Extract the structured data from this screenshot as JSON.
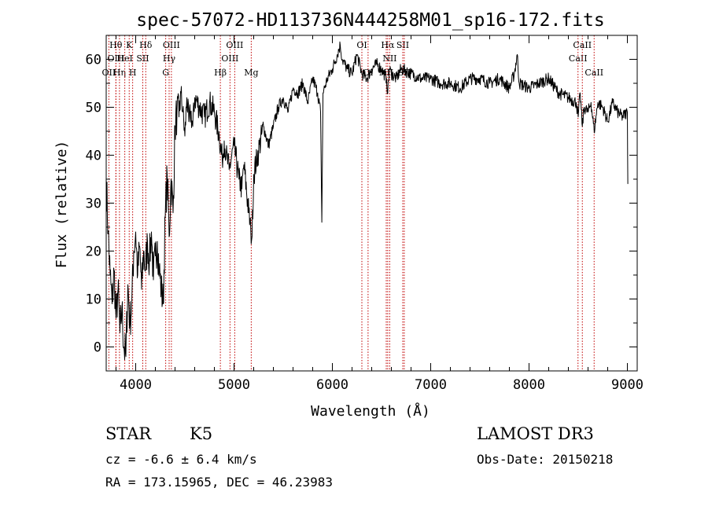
{
  "chart_data": {
    "type": "line",
    "title": "spec-57072-HD113736N444258M01_sp16-172.fits",
    "xlabel": "Wavelength (Å)",
    "ylabel": "Flux (relative)",
    "xlim": [
      3700,
      9100
    ],
    "ylim": [
      -5,
      65
    ],
    "xticks": [
      4000,
      5000,
      6000,
      7000,
      8000,
      9000
    ],
    "yticks": [
      0,
      10,
      20,
      30,
      40,
      50,
      60
    ],
    "series": [
      {
        "name": "flux",
        "x": [
          3700,
          3720,
          3740,
          3760,
          3780,
          3800,
          3820,
          3840,
          3860,
          3880,
          3900,
          3920,
          3940,
          3960,
          3980,
          4000,
          4020,
          4040,
          4060,
          4080,
          4100,
          4120,
          4140,
          4160,
          4180,
          4200,
          4220,
          4240,
          4260,
          4280,
          4300,
          4320,
          4340,
          4360,
          4380,
          4400,
          4420,
          4440,
          4460,
          4480,
          4500,
          4520,
          4540,
          4560,
          4580,
          4600,
          4650,
          4700,
          4750,
          4800,
          4850,
          4880,
          4900,
          4920,
          4950,
          5000,
          5050,
          5080,
          5100,
          5150,
          5170,
          5183,
          5200,
          5250,
          5300,
          5350,
          5400,
          5450,
          5500,
          5550,
          5600,
          5650,
          5700,
          5750,
          5800,
          5850,
          5880,
          5893,
          5905,
          5950,
          6000,
          6050,
          6080,
          6100,
          6150,
          6200,
          6250,
          6300,
          6350,
          6400,
          6450,
          6500,
          6550,
          6563,
          6580,
          6600,
          6650,
          6700,
          6800,
          6900,
          7000,
          7100,
          7200,
          7300,
          7400,
          7500,
          7600,
          7700,
          7800,
          7850,
          7880,
          7900,
          8000,
          8100,
          8200,
          8300,
          8400,
          8480,
          8500,
          8520,
          8542,
          8560,
          8600,
          8630,
          8662,
          8700,
          8750,
          8800,
          8850,
          8900,
          8950,
          9000,
          9005
        ],
        "values": [
          35,
          24,
          15,
          9,
          16,
          6,
          12,
          3,
          8,
          0,
          -2,
          13,
          5,
          9,
          20,
          24,
          15,
          21,
          12,
          20,
          16,
          22,
          18,
          24,
          14,
          19,
          22,
          16,
          12,
          9,
          27,
          36,
          23,
          35,
          28,
          46,
          49,
          48,
          53,
          49,
          44,
          52,
          47,
          49,
          46,
          52,
          50,
          48,
          51,
          49,
          44,
          39,
          43,
          40,
          37,
          42,
          35,
          33,
          38,
          28,
          24,
          23,
          36,
          41,
          46,
          42,
          46,
          50,
          52,
          49,
          54,
          53,
          55,
          51,
          56,
          53,
          49,
          26,
          53,
          56,
          58,
          61,
          63,
          60,
          58,
          57,
          61,
          57,
          56,
          58,
          59,
          58,
          56,
          53,
          58,
          57,
          56,
          58,
          57,
          56,
          56,
          55,
          55,
          54,
          56,
          56,
          55,
          56,
          54,
          57,
          61,
          55,
          54,
          55,
          56,
          53,
          52,
          51,
          48,
          53,
          46,
          50,
          49,
          51,
          45,
          51,
          50,
          47,
          51,
          49,
          48,
          49,
          34
        ]
      }
    ],
    "line_markers": [
      {
        "label": "OII",
        "wavelength": 3727,
        "row": 3
      },
      {
        "label": "Hθ",
        "wavelength": 3798,
        "row": 1
      },
      {
        "label": "OIII",
        "wavelength": 3800,
        "row": 2
      },
      {
        "label": "Hη",
        "wavelength": 3835,
        "row": 3
      },
      {
        "label": "HeI",
        "wavelength": 3889,
        "row": 2
      },
      {
        "label": "K",
        "wavelength": 3934,
        "row": 1
      },
      {
        "label": "H",
        "wavelength": 3969,
        "row": 3
      },
      {
        "label": "SII",
        "wavelength": 4072,
        "row": 2
      },
      {
        "label": "Hδ",
        "wavelength": 4102,
        "row": 1
      },
      {
        "label": "G",
        "wavelength": 4305,
        "row": 3
      },
      {
        "label": "Hγ",
        "wavelength": 4340,
        "row": 2
      },
      {
        "label": "OIII",
        "wavelength": 4363,
        "row": 1
      },
      {
        "label": "Hβ",
        "wavelength": 4861,
        "row": 3
      },
      {
        "label": "OIII",
        "wavelength": 4959,
        "row": 2
      },
      {
        "label": "OIII",
        "wavelength": 5007,
        "row": 1
      },
      {
        "label": "Mg",
        "wavelength": 5175,
        "row": 3
      },
      {
        "label": "OI",
        "wavelength": 6300,
        "row": 1
      },
      {
        "label": "OI",
        "wavelength": 6363,
        "row": 3
      },
      {
        "label": "NII",
        "wavelength": 6548,
        "row": 3
      },
      {
        "label": "Hα",
        "wavelength": 6563,
        "row": 1
      },
      {
        "label": "NII",
        "wavelength": 6583,
        "row": 2
      },
      {
        "label": "SII",
        "wavelength": 6716,
        "row": 1
      },
      {
        "label": "SII",
        "wavelength": 6731,
        "row": 3
      },
      {
        "label": "CaII",
        "wavelength": 8498,
        "row": 2
      },
      {
        "label": "CaII",
        "wavelength": 8542,
        "row": 1
      },
      {
        "label": "CaII",
        "wavelength": 8662,
        "row": 3
      }
    ]
  },
  "info": {
    "object_class": "STAR",
    "subclass": "K5",
    "survey": "LAMOST DR3",
    "cz": "cz = -6.6 ± 6.4 km/s",
    "obs_date": "Obs-Date: 20150218",
    "radec": "RA = 173.15965, DEC =  46.23983"
  }
}
